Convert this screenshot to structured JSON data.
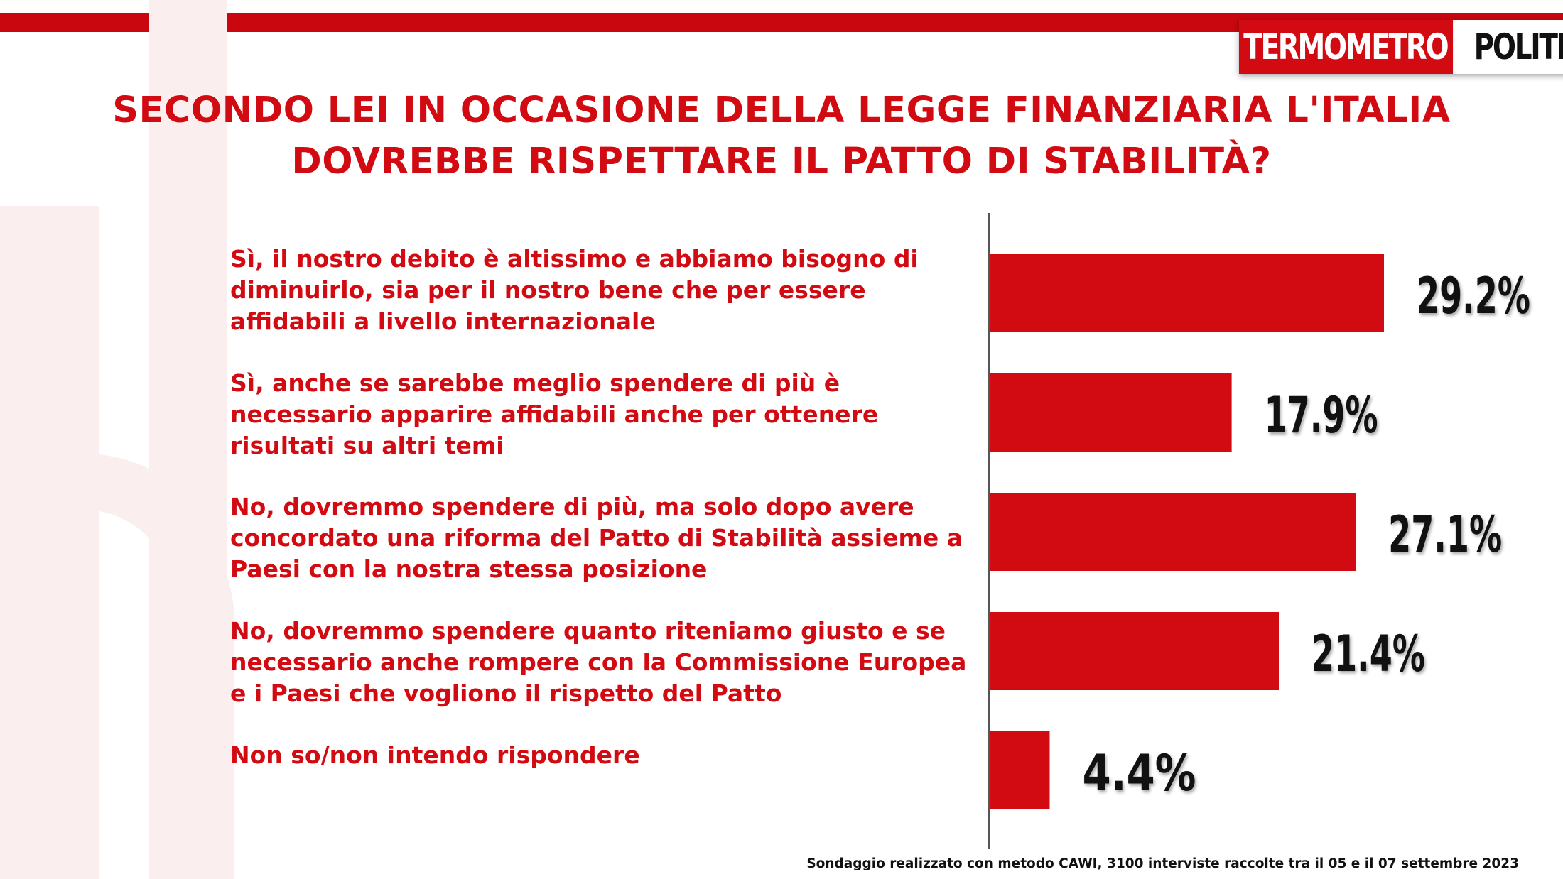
{
  "brand": {
    "logo_part1": "TERMOMETRO",
    "logo_part2": "POLITICO",
    "accent_color": "#d20a11"
  },
  "title_lines": [
    "SECONDO LEI IN OCCASIONE DELLA LEGGE FINANZIARIA L'ITALIA",
    "DOVREBBE RISPETTARE IL PATTO DI STABILITÀ?"
  ],
  "chart_data": {
    "type": "bar",
    "orientation": "horizontal",
    "categories": [
      "Sì, il nostro debito è altissimo e abbiamo bisogno di diminuirlo, sia per il nostro bene che per essere affidabili a livello internazionale",
      "Sì, anche se sarebbe meglio spendere di più è necessario apparire affidabili anche per ottenere risultati su altri temi",
      "No, dovremmo spendere di più, ma solo dopo avere concordato una riforma del Patto di Stabilità  assieme a Paesi con la nostra stessa posizione",
      "No, dovremmo spendere quanto riteniamo giusto e se necessario anche rompere con la Commissione Europea e i Paesi che vogliono il rispetto del Patto",
      "Non so/non intendo rispondere"
    ],
    "values": [
      29.2,
      17.9,
      27.1,
      21.4,
      4.4
    ],
    "value_labels": [
      "29.2%",
      "17.9%",
      "27.1%",
      "21.4%",
      "4.4%"
    ],
    "bar_color": "#d20a11",
    "xlim": [
      0,
      40
    ],
    "grid": false,
    "legend": "none"
  },
  "footnote": "Sondaggio realizzato con metodo CAWI, 3100 interviste raccolte tra il 05 e il 07 settembre 2023"
}
